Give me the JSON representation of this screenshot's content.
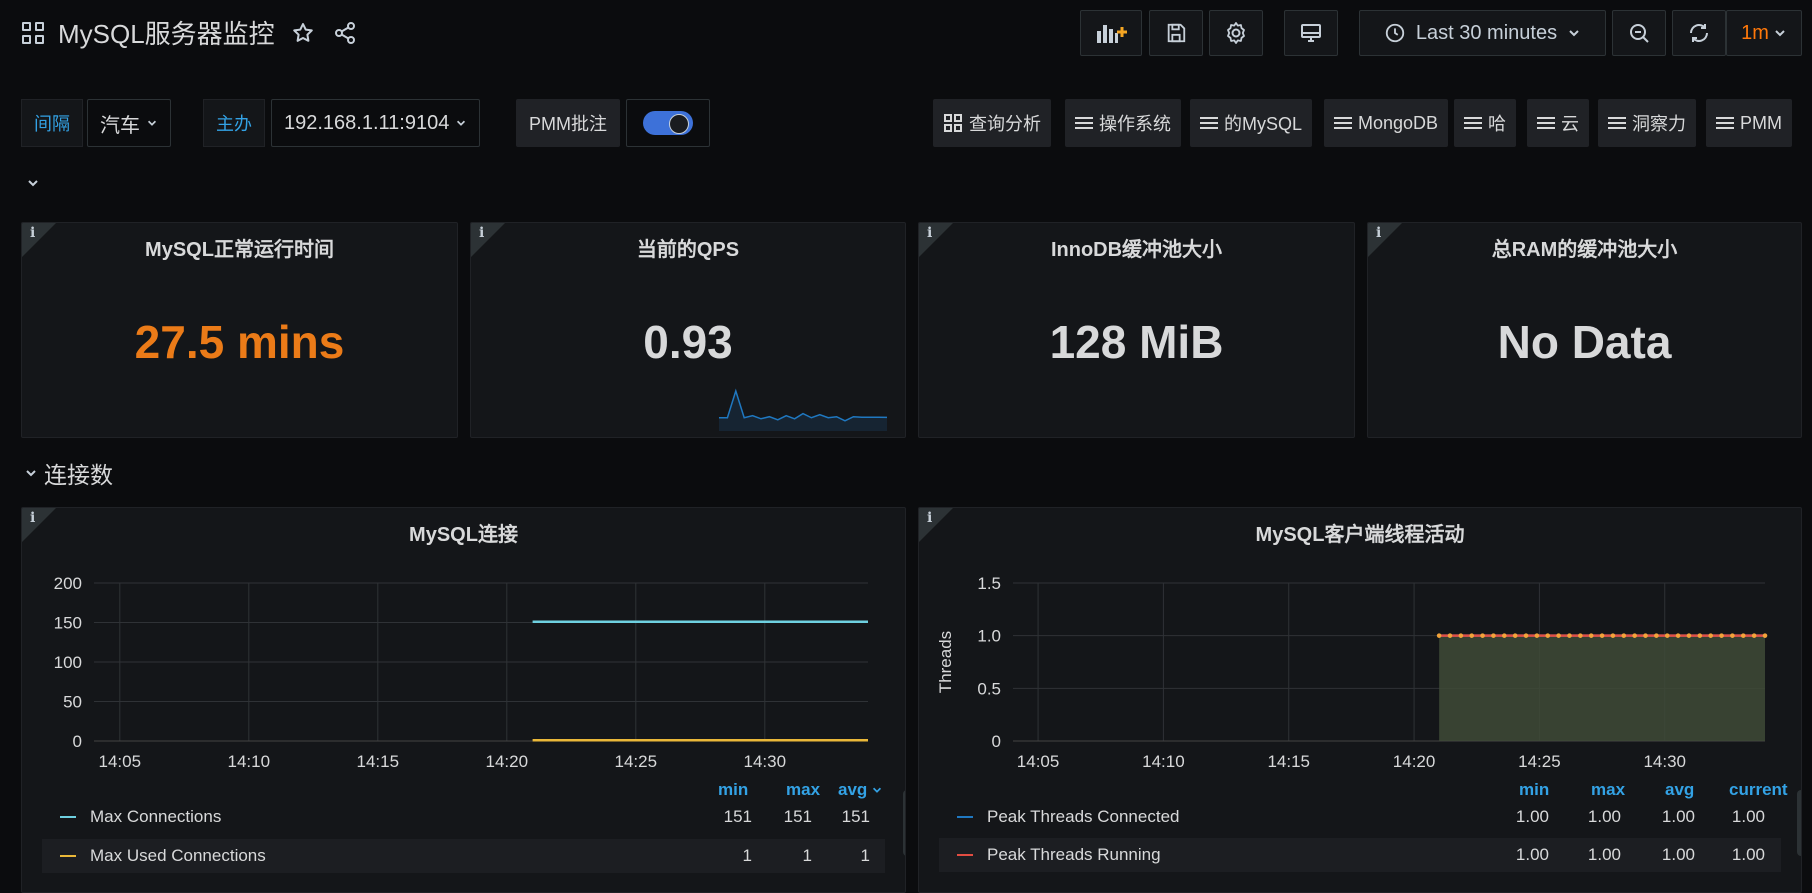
{
  "header": {
    "title": "MySQL服务器监控",
    "time_range": "Last 30 minutes",
    "refresh_interval": "1m"
  },
  "variables": {
    "interval_label": "间隔",
    "interval_value": "汽车",
    "host_label": "主办",
    "host_value": "192.168.1.11:9104",
    "annotations_label": "PMM批注",
    "annotations_enabled": true
  },
  "links": [
    {
      "label": "查询分析",
      "icon": "grid-icon"
    },
    {
      "label": "操作系统",
      "icon": "bars-icon"
    },
    {
      "label": "的MySQL",
      "icon": "bars-icon"
    },
    {
      "label": "MongoDB",
      "icon": "bars-icon"
    },
    {
      "label": "哈",
      "icon": "bars-icon"
    },
    {
      "label": "云",
      "icon": "bars-icon"
    },
    {
      "label": "洞察力",
      "icon": "bars-icon"
    },
    {
      "label": "PMM",
      "icon": "bars-icon"
    }
  ],
  "stats": [
    {
      "title": "MySQL正常运行时间",
      "value": "27.5 mins",
      "color": "#eb7b18"
    },
    {
      "title": "当前的QPS",
      "value": "0.93",
      "color": "#d8d9da"
    },
    {
      "title": "InnoDB缓冲池大小",
      "value": "128 MiB",
      "color": "#d8d9da"
    },
    {
      "title": "总RAM的缓冲池大小",
      "value": "No Data",
      "color": "#d8d9da"
    }
  ],
  "row_title": "连接数",
  "colors": {
    "max_connections": "#6ed0e0",
    "max_used_connections": "#eab839",
    "peak_threads_connected": "#1f78c1",
    "peak_threads_running": "#e24d42",
    "legend_header": "#33a2e5",
    "uptime": "#eb7b18"
  },
  "chart_data": [
    {
      "type": "line",
      "title": "MySQL连接",
      "x_ticks": [
        "14:05",
        "14:10",
        "14:15",
        "14:20",
        "14:25",
        "14:30"
      ],
      "y_ticks": [
        0,
        50,
        100,
        150,
        200
      ],
      "ylim": [
        0,
        200
      ],
      "xlim": [
        "14:04",
        "14:34"
      ],
      "grid": true,
      "series": [
        {
          "name": "Max Connections",
          "x": [
            "14:21",
            "14:34"
          ],
          "values": [
            151,
            151
          ],
          "min": "151",
          "max": "151",
          "avg": "151"
        },
        {
          "name": "Max Used Connections",
          "x": [
            "14:21",
            "14:34"
          ],
          "values": [
            1,
            1
          ],
          "min": "1",
          "max": "1",
          "avg": "1"
        }
      ],
      "legend_columns": [
        "min",
        "max",
        "avg"
      ]
    },
    {
      "type": "area",
      "title": "MySQL客户端线程活动",
      "ylabel": "Threads",
      "x_ticks": [
        "14:05",
        "14:10",
        "14:15",
        "14:20",
        "14:25",
        "14:30"
      ],
      "y_ticks": [
        "0",
        "0.5",
        "1.0",
        "1.5"
      ],
      "ylim": [
        0,
        1.5
      ],
      "xlim": [
        "14:04",
        "14:34"
      ],
      "grid": true,
      "series": [
        {
          "name": "Peak Threads Connected",
          "x": [
            "14:21",
            "14:34"
          ],
          "values": [
            1,
            1
          ],
          "min": "1.00",
          "max": "1.00",
          "avg": "1.00",
          "current": "1.00"
        },
        {
          "name": "Peak Threads Running",
          "x": [
            "14:21",
            "14:34"
          ],
          "values": [
            1,
            1
          ],
          "min": "1.00",
          "max": "1.00",
          "avg": "1.00",
          "current": "1.00"
        }
      ],
      "legend_columns": [
        "min",
        "max",
        "avg",
        "current"
      ]
    },
    {
      "type": "line",
      "title": "当前的QPS sparkline",
      "values": [
        0.9,
        0.9,
        3.5,
        0.9,
        1.1,
        0.8,
        1.0,
        0.7,
        1.1,
        0.8,
        1.3,
        0.9,
        1.2,
        0.9,
        1.0,
        0.6,
        1.0,
        0.95,
        0.95,
        0.95,
        0.93
      ]
    }
  ]
}
